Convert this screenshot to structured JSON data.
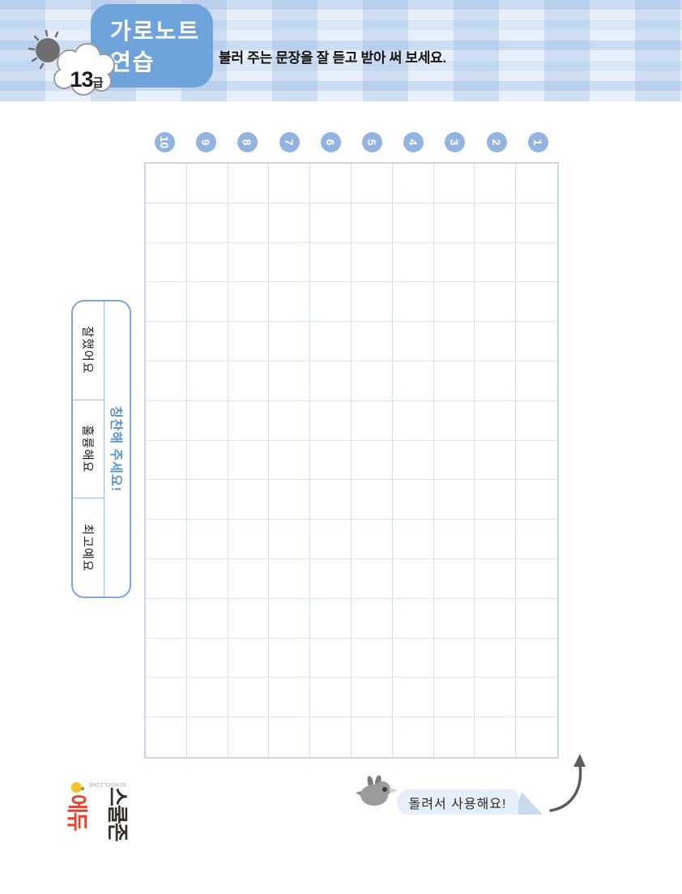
{
  "header": {
    "badge_level": "13",
    "badge_suffix": "급",
    "title_line1": "가로노트",
    "title_line2": "연습",
    "instruction": "불러 주는 문장을 잘 듣고 받아 써 보세요."
  },
  "grid": {
    "columns": 10,
    "rows": 15,
    "column_numbers": [
      "10",
      "9",
      "8",
      "7",
      "6",
      "5",
      "4",
      "3",
      "2",
      "1"
    ]
  },
  "praise_box": {
    "title": "칭찬해 주세요!",
    "options": [
      "잘했어요",
      "훌륭해요",
      "최고예요"
    ]
  },
  "footer": {
    "rotate_note": "돌려서 사용해요!",
    "logo_text_dark": "스쿨존",
    "logo_text_red": "에듀",
    "logo_small_text": "SCHOOLZONE"
  },
  "colors": {
    "accent_blue": "#6fa3db",
    "circle_blue": "#93b3e0",
    "grid_line": "#d5e0f0",
    "grid_border": "#c9d7ec",
    "praise_border": "#7ca6d8",
    "praise_title_blue": "#5f93cc",
    "bubble_bg": "#e6eef9",
    "bubble_fold": "#c9d9ee",
    "plaid_base": "#e7effa",
    "logo_red": "#e8402a",
    "sun_gray": "#6f6f6f",
    "bird_gray": "#9b9b9b"
  }
}
